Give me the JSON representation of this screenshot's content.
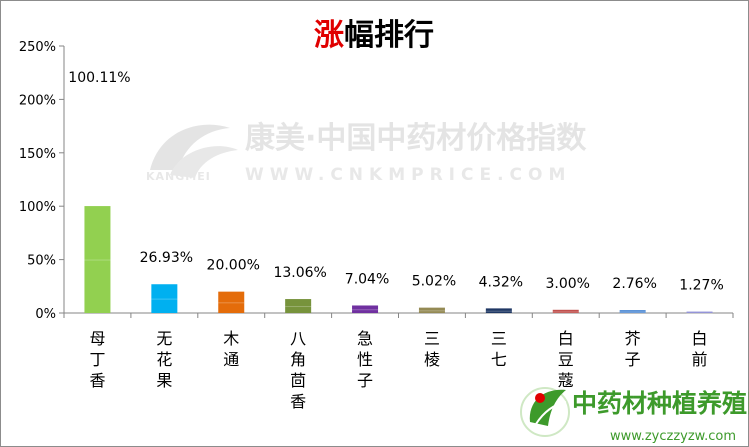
{
  "title": {
    "accent": "涨",
    "rest": "幅排行"
  },
  "watermark": {
    "main": "康美·中国中药材价格指数",
    "brand": "KANGMEI",
    "url": "WWW.CNKMPRICE.COM"
  },
  "logo": {
    "name": "中药材种植养殖网",
    "url": "www.zyczzyzw.com"
  },
  "colors": {
    "axis": "#868686",
    "title_accent": "#e00000",
    "logo_green": "#3d9a2b"
  },
  "chart_data": {
    "type": "bar",
    "categories": [
      "母丁香",
      "无花果",
      "木通",
      "八角茴香",
      "急性子",
      "三棱",
      "三七",
      "白豆蔻",
      "芥子",
      "白前"
    ],
    "values": [
      100.11,
      26.93,
      20.0,
      13.06,
      7.04,
      5.02,
      4.32,
      3.0,
      2.76,
      1.27
    ],
    "data_labels": [
      "100.11%",
      "26.93%",
      "20.00%",
      "13.06%",
      "7.04%",
      "5.02%",
      "4.32%",
      "3.00%",
      "2.76%",
      "1.27%"
    ],
    "bar_colors": [
      "#92d050",
      "#00b0f0",
      "#e46c0a",
      "#77933c",
      "#7030a0",
      "#948a54",
      "#1f3864",
      "#c0504d",
      "#558ed5",
      "#7f7fd0"
    ],
    "yticks": [
      "0%",
      "50%",
      "100%",
      "150%",
      "200%",
      "250%"
    ],
    "ylim": [
      0,
      250
    ],
    "xlabel": "",
    "ylabel": "",
    "grid": false,
    "legend": "none"
  }
}
